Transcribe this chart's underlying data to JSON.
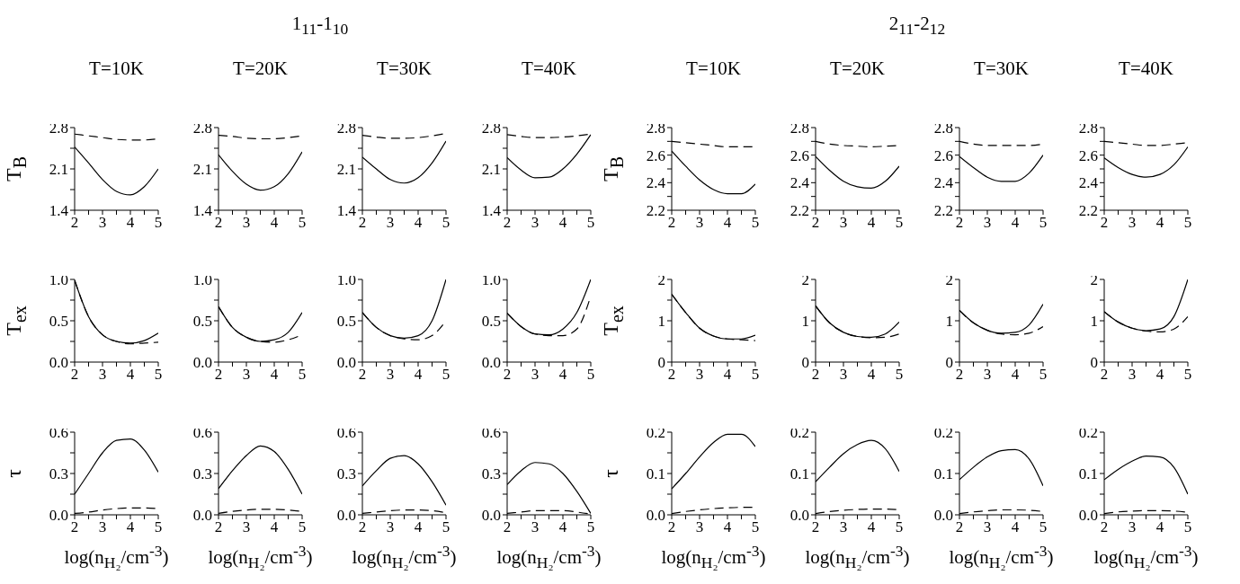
{
  "chart_data": [
    {
      "type": "line",
      "title": "T=10K",
      "ylabel": "T$_{B}$",
      "x": [
        2,
        2.5,
        3,
        3.5,
        4,
        4.5,
        5
      ],
      "xlim": [
        2,
        5
      ],
      "xticks": [
        2,
        {
          "value": 2.5,
          "label": null
        },
        3,
        {
          "value": 3.5,
          "label": null
        },
        4,
        {
          "value": 4.5,
          "label": null
        },
        5
      ],
      "ylim": [
        1.4,
        2.8
      ],
      "yticks": [
        1.4,
        {
          "value": 1.75,
          "label": null
        },
        2.1,
        {
          "value": 2.45,
          "label": null
        },
        2.8
      ],
      "series": [
        {
          "color": "#000000",
          "line_style": "solid",
          "values": [
            2.47,
            2.2,
            1.92,
            1.72,
            1.66,
            1.8,
            2.1
          ]
        },
        {
          "color": "#000000",
          "line_style": "dashed",
          "values": [
            2.69,
            2.66,
            2.63,
            2.6,
            2.59,
            2.59,
            2.61
          ]
        }
      ]
    },
    {
      "type": "line",
      "title": "T=20K",
      "annotations": [
        "1$_{11}$-1$_{10}$"
      ],
      "x": [
        2,
        2.5,
        3,
        3.5,
        4,
        4.5,
        5
      ],
      "xlim": [
        2,
        5
      ],
      "xticks": [
        2,
        {
          "value": 2.5,
          "label": null
        },
        3,
        {
          "value": 3.5,
          "label": null
        },
        4,
        {
          "value": 4.5,
          "label": null
        },
        5
      ],
      "ylim": [
        1.4,
        2.8
      ],
      "yticks": [
        1.4,
        {
          "value": 1.75,
          "label": null
        },
        2.1,
        {
          "value": 2.45,
          "label": null
        },
        2.8
      ],
      "series": [
        {
          "color": "#000000",
          "line_style": "solid",
          "values": [
            2.34,
            2.06,
            1.84,
            1.74,
            1.8,
            2.02,
            2.39
          ]
        },
        {
          "color": "#000000",
          "line_style": "dashed",
          "values": [
            2.67,
            2.65,
            2.62,
            2.61,
            2.61,
            2.63,
            2.66
          ]
        }
      ]
    },
    {
      "type": "line",
      "title": "T=30K",
      "x": [
        2,
        2.5,
        3,
        3.5,
        4,
        4.5,
        5
      ],
      "xlim": [
        2,
        5
      ],
      "xticks": [
        2,
        {
          "value": 2.5,
          "label": null
        },
        3,
        {
          "value": 3.5,
          "label": null
        },
        4,
        {
          "value": 4.5,
          "label": null
        },
        5
      ],
      "ylim": [
        1.4,
        2.8
      ],
      "yticks": [
        1.4,
        {
          "value": 1.75,
          "label": null
        },
        2.1,
        {
          "value": 2.45,
          "label": null
        },
        2.8
      ],
      "series": [
        {
          "color": "#000000",
          "line_style": "solid",
          "values": [
            2.3,
            2.1,
            1.92,
            1.86,
            1.95,
            2.2,
            2.57
          ]
        },
        {
          "color": "#000000",
          "line_style": "dashed",
          "values": [
            2.67,
            2.64,
            2.62,
            2.62,
            2.63,
            2.66,
            2.7
          ]
        }
      ]
    },
    {
      "type": "line",
      "title": "T=40K",
      "x": [
        2,
        2.5,
        3,
        3.5,
        4,
        4.5,
        5
      ],
      "xlim": [
        2,
        5
      ],
      "xticks": [
        2,
        {
          "value": 2.5,
          "label": null
        },
        3,
        {
          "value": 3.5,
          "label": null
        },
        4,
        {
          "value": 4.5,
          "label": null
        },
        5
      ],
      "ylim": [
        1.4,
        2.8
      ],
      "yticks": [
        1.4,
        {
          "value": 1.75,
          "label": null
        },
        2.1,
        {
          "value": 2.45,
          "label": null
        },
        2.8
      ],
      "series": [
        {
          "color": "#000000",
          "line_style": "solid",
          "values": [
            2.29,
            2.08,
            1.95,
            1.96,
            2.1,
            2.35,
            2.68
          ]
        },
        {
          "color": "#000000",
          "line_style": "dashed",
          "values": [
            2.68,
            2.65,
            2.63,
            2.63,
            2.64,
            2.66,
            2.69
          ]
        }
      ]
    },
    {
      "type": "line",
      "title": "T=10K",
      "ylabel": "T$_{B}$",
      "x": [
        2,
        2.5,
        3,
        3.5,
        4,
        4.5,
        5
      ],
      "xlim": [
        2,
        5
      ],
      "xticks": [
        2,
        {
          "value": 2.5,
          "label": null
        },
        3,
        {
          "value": 3.5,
          "label": null
        },
        4,
        {
          "value": 4.5,
          "label": null
        },
        5
      ],
      "ylim": [
        2.2,
        2.8
      ],
      "yticks": [
        2.2,
        {
          "value": 2.3,
          "label": null
        },
        2.4,
        {
          "value": 2.5,
          "label": null
        },
        2.6,
        {
          "value": 2.7,
          "label": null
        },
        2.8
      ],
      "series": [
        {
          "color": "#000000",
          "line_style": "solid",
          "values": [
            2.63,
            2.52,
            2.42,
            2.35,
            2.32,
            2.32,
            2.39
          ]
        },
        {
          "color": "#000000",
          "line_style": "dashed",
          "values": [
            2.7,
            2.69,
            2.68,
            2.67,
            2.66,
            2.66,
            2.66
          ]
        }
      ]
    },
    {
      "type": "line",
      "title": "T=20K",
      "annotations": [
        "2$_{11}$-2$_{12}$"
      ],
      "x": [
        2,
        2.5,
        3,
        3.5,
        4,
        4.5,
        5
      ],
      "xlim": [
        2,
        5
      ],
      "xticks": [
        2,
        {
          "value": 2.5,
          "label": null
        },
        3,
        {
          "value": 3.5,
          "label": null
        },
        4,
        {
          "value": 4.5,
          "label": null
        },
        5
      ],
      "ylim": [
        2.2,
        2.8
      ],
      "yticks": [
        2.2,
        {
          "value": 2.3,
          "label": null
        },
        2.4,
        {
          "value": 2.5,
          "label": null
        },
        2.6,
        {
          "value": 2.7,
          "label": null
        },
        2.8
      ],
      "series": [
        {
          "color": "#000000",
          "line_style": "solid",
          "values": [
            2.59,
            2.49,
            2.41,
            2.37,
            2.36,
            2.41,
            2.52
          ]
        },
        {
          "color": "#000000",
          "line_style": "dashed",
          "values": [
            2.7,
            2.68,
            2.67,
            2.665,
            2.66,
            2.665,
            2.67
          ]
        }
      ]
    },
    {
      "type": "line",
      "title": "T=30K",
      "x": [
        2,
        2.5,
        3,
        3.5,
        4,
        4.5,
        5
      ],
      "xlim": [
        2,
        5
      ],
      "xticks": [
        2,
        {
          "value": 2.5,
          "label": null
        },
        3,
        {
          "value": 3.5,
          "label": null
        },
        4,
        {
          "value": 4.5,
          "label": null
        },
        5
      ],
      "ylim": [
        2.2,
        2.8
      ],
      "yticks": [
        2.2,
        {
          "value": 2.3,
          "label": null
        },
        2.4,
        {
          "value": 2.5,
          "label": null
        },
        2.6,
        {
          "value": 2.7,
          "label": null
        },
        2.8
      ],
      "series": [
        {
          "color": "#000000",
          "line_style": "solid",
          "values": [
            2.59,
            2.51,
            2.44,
            2.41,
            2.41,
            2.47,
            2.6
          ]
        },
        {
          "color": "#000000",
          "line_style": "dashed",
          "values": [
            2.7,
            2.68,
            2.67,
            2.67,
            2.67,
            2.67,
            2.68
          ]
        }
      ]
    },
    {
      "type": "line",
      "title": "T=40K",
      "x": [
        2,
        2.5,
        3,
        3.5,
        4,
        4.5,
        5
      ],
      "xlim": [
        2,
        5
      ],
      "xticks": [
        2,
        {
          "value": 2.5,
          "label": null
        },
        3,
        {
          "value": 3.5,
          "label": null
        },
        4,
        {
          "value": 4.5,
          "label": null
        },
        5
      ],
      "ylim": [
        2.2,
        2.8
      ],
      "yticks": [
        2.2,
        {
          "value": 2.3,
          "label": null
        },
        2.4,
        {
          "value": 2.5,
          "label": null
        },
        2.6,
        {
          "value": 2.7,
          "label": null
        },
        2.8
      ],
      "series": [
        {
          "color": "#000000",
          "line_style": "solid",
          "values": [
            2.58,
            2.51,
            2.46,
            2.44,
            2.46,
            2.53,
            2.66
          ]
        },
        {
          "color": "#000000",
          "line_style": "dashed",
          "values": [
            2.7,
            2.69,
            2.68,
            2.67,
            2.67,
            2.68,
            2.69
          ]
        }
      ]
    },
    {
      "type": "line",
      "ylabel": "T$_{ex}$",
      "x": [
        2,
        2.5,
        3,
        3.5,
        4,
        4.5,
        5
      ],
      "xlim": [
        2,
        5
      ],
      "xticks": [
        2,
        {
          "value": 2.5,
          "label": null
        },
        3,
        {
          "value": 3.5,
          "label": null
        },
        4,
        {
          "value": 4.5,
          "label": null
        },
        5
      ],
      "ylim": [
        0,
        1
      ],
      "yticks": [
        {
          "value": 0,
          "label": "0.0"
        },
        {
          "value": 0.25,
          "label": null
        },
        0.5,
        {
          "value": 0.75,
          "label": null
        },
        {
          "value": 1,
          "label": "1.0"
        }
      ],
      "series": [
        {
          "color": "#000000",
          "line_style": "solid",
          "values": [
            0.99,
            0.55,
            0.33,
            0.25,
            0.23,
            0.26,
            0.35
          ]
        },
        {
          "color": "#000000",
          "line_style": "dashed",
          "values": [
            0.99,
            0.55,
            0.33,
            0.25,
            0.22,
            0.23,
            0.24
          ]
        }
      ]
    },
    {
      "type": "line",
      "x": [
        2,
        2.5,
        3,
        3.5,
        4,
        4.5,
        5
      ],
      "xlim": [
        2,
        5
      ],
      "xticks": [
        2,
        {
          "value": 2.5,
          "label": null
        },
        3,
        {
          "value": 3.5,
          "label": null
        },
        4,
        {
          "value": 4.5,
          "label": null
        },
        5
      ],
      "ylim": [
        0,
        1
      ],
      "yticks": [
        {
          "value": 0,
          "label": "0.0"
        },
        {
          "value": 0.25,
          "label": null
        },
        0.5,
        {
          "value": 0.75,
          "label": null
        },
        {
          "value": 1,
          "label": "1.0"
        }
      ],
      "series": [
        {
          "color": "#000000",
          "line_style": "solid",
          "values": [
            0.67,
            0.42,
            0.3,
            0.25,
            0.27,
            0.36,
            0.6
          ]
        },
        {
          "color": "#000000",
          "line_style": "dashed",
          "values": [
            0.67,
            0.42,
            0.3,
            0.25,
            0.24,
            0.27,
            0.33
          ]
        }
      ]
    },
    {
      "type": "line",
      "x": [
        2,
        2.5,
        3,
        3.5,
        4,
        4.5,
        5
      ],
      "xlim": [
        2,
        5
      ],
      "xticks": [
        2,
        {
          "value": 2.5,
          "label": null
        },
        3,
        {
          "value": 3.5,
          "label": null
        },
        4,
        {
          "value": 4.5,
          "label": null
        },
        5
      ],
      "ylim": [
        0,
        1
      ],
      "yticks": [
        {
          "value": 0,
          "label": "0.0"
        },
        {
          "value": 0.25,
          "label": null
        },
        0.5,
        {
          "value": 0.75,
          "label": null
        },
        {
          "value": 1,
          "label": "1.0"
        }
      ],
      "series": [
        {
          "color": "#000000",
          "line_style": "solid",
          "values": [
            0.6,
            0.42,
            0.32,
            0.29,
            0.32,
            0.5,
            1.0
          ]
        },
        {
          "color": "#000000",
          "line_style": "dashed",
          "values": [
            0.6,
            0.42,
            0.32,
            0.28,
            0.27,
            0.32,
            0.5
          ]
        }
      ]
    },
    {
      "type": "line",
      "x": [
        2,
        2.5,
        3,
        3.5,
        4,
        4.5,
        5
      ],
      "xlim": [
        2,
        5
      ],
      "xticks": [
        2,
        {
          "value": 2.5,
          "label": null
        },
        3,
        {
          "value": 3.5,
          "label": null
        },
        4,
        {
          "value": 4.5,
          "label": null
        },
        5
      ],
      "ylim": [
        0,
        1
      ],
      "yticks": [
        {
          "value": 0,
          "label": "0.0"
        },
        {
          "value": 0.25,
          "label": null
        },
        0.5,
        {
          "value": 0.75,
          "label": null
        },
        {
          "value": 1,
          "label": "1.0"
        }
      ],
      "series": [
        {
          "color": "#000000",
          "line_style": "solid",
          "values": [
            0.59,
            0.43,
            0.34,
            0.33,
            0.4,
            0.6,
            1.0
          ]
        },
        {
          "color": "#000000",
          "line_style": "dashed",
          "values": [
            0.59,
            0.43,
            0.34,
            0.32,
            0.32,
            0.4,
            0.8
          ]
        }
      ]
    },
    {
      "type": "line",
      "ylabel": "T$_{ex}$",
      "x": [
        2,
        2.5,
        3,
        3.5,
        4,
        4.5,
        5
      ],
      "xlim": [
        2,
        5
      ],
      "xticks": [
        2,
        {
          "value": 2.5,
          "label": null
        },
        3,
        {
          "value": 3.5,
          "label": null
        },
        4,
        {
          "value": 4.5,
          "label": null
        },
        5
      ],
      "ylim": [
        0,
        2
      ],
      "yticks": [
        0,
        {
          "value": 0.5,
          "label": null
        },
        1,
        {
          "value": 1.5,
          "label": null
        },
        2
      ],
      "series": [
        {
          "color": "#000000",
          "line_style": "solid",
          "values": [
            1.64,
            1.2,
            0.82,
            0.63,
            0.56,
            0.56,
            0.65
          ]
        },
        {
          "color": "#000000",
          "line_style": "dashed",
          "values": [
            1.64,
            1.2,
            0.82,
            0.63,
            0.56,
            0.54,
            0.52
          ]
        }
      ]
    },
    {
      "type": "line",
      "x": [
        2,
        2.5,
        3,
        3.5,
        4,
        4.5,
        5
      ],
      "xlim": [
        2,
        5
      ],
      "xticks": [
        2,
        {
          "value": 2.5,
          "label": null
        },
        3,
        {
          "value": 3.5,
          "label": null
        },
        4,
        {
          "value": 4.5,
          "label": null
        },
        5
      ],
      "ylim": [
        0,
        2
      ],
      "yticks": [
        0,
        {
          "value": 0.5,
          "label": null
        },
        1,
        {
          "value": 1.5,
          "label": null
        },
        2
      ],
      "series": [
        {
          "color": "#000000",
          "line_style": "solid",
          "values": [
            1.36,
            0.95,
            0.72,
            0.62,
            0.6,
            0.68,
            0.97
          ]
        },
        {
          "color": "#000000",
          "line_style": "dashed",
          "values": [
            1.36,
            0.95,
            0.72,
            0.62,
            0.59,
            0.6,
            0.68
          ]
        }
      ]
    },
    {
      "type": "line",
      "x": [
        2,
        2.5,
        3,
        3.5,
        4,
        4.5,
        5
      ],
      "xlim": [
        2,
        5
      ],
      "xticks": [
        2,
        {
          "value": 2.5,
          "label": null
        },
        3,
        {
          "value": 3.5,
          "label": null
        },
        4,
        {
          "value": 4.5,
          "label": null
        },
        5
      ],
      "ylim": [
        0,
        2
      ],
      "yticks": [
        0,
        {
          "value": 0.5,
          "label": null
        },
        1,
        {
          "value": 1.5,
          "label": null
        },
        2
      ],
      "series": [
        {
          "color": "#000000",
          "line_style": "solid",
          "values": [
            1.25,
            0.95,
            0.77,
            0.7,
            0.72,
            0.9,
            1.4
          ]
        },
        {
          "color": "#000000",
          "line_style": "dashed",
          "values": [
            1.25,
            0.95,
            0.77,
            0.68,
            0.66,
            0.7,
            0.86
          ]
        }
      ]
    },
    {
      "type": "line",
      "x": [
        2,
        2.5,
        3,
        3.5,
        4,
        4.5,
        5
      ],
      "xlim": [
        2,
        5
      ],
      "xticks": [
        2,
        {
          "value": 2.5,
          "label": null
        },
        3,
        {
          "value": 3.5,
          "label": null
        },
        4,
        {
          "value": 4.5,
          "label": null
        },
        5
      ],
      "ylim": [
        0,
        2
      ],
      "yticks": [
        0,
        {
          "value": 0.5,
          "label": null
        },
        1,
        {
          "value": 1.5,
          "label": null
        },
        2
      ],
      "series": [
        {
          "color": "#000000",
          "line_style": "solid",
          "values": [
            1.22,
            0.97,
            0.82,
            0.76,
            0.8,
            1.1,
            2.0
          ]
        },
        {
          "color": "#000000",
          "line_style": "dashed",
          "values": [
            1.22,
            0.97,
            0.82,
            0.75,
            0.73,
            0.8,
            1.1
          ]
        }
      ]
    },
    {
      "type": "line",
      "ylabel": "τ",
      "xlabel": "log(n$_{H₂}$/cm$^{-3}$)",
      "x": [
        2,
        2.5,
        3,
        3.5,
        4,
        4.5,
        5
      ],
      "xlim": [
        2,
        5
      ],
      "xticks": [
        2,
        {
          "value": 2.5,
          "label": null
        },
        3,
        {
          "value": 3.5,
          "label": null
        },
        4,
        {
          "value": 4.5,
          "label": null
        },
        5
      ],
      "ylim": [
        0,
        0.6
      ],
      "yticks": [
        {
          "value": 0,
          "label": "0.0"
        },
        {
          "value": 0.15,
          "label": null
        },
        0.3,
        {
          "value": 0.45,
          "label": null
        },
        0.6
      ],
      "series": [
        {
          "color": "#000000",
          "line_style": "solid",
          "values": [
            0.15,
            0.3,
            0.45,
            0.54,
            0.55,
            0.47,
            0.31
          ]
        },
        {
          "color": "#000000",
          "line_style": "dashed",
          "values": [
            0.01,
            0.02,
            0.035,
            0.045,
            0.05,
            0.05,
            0.045
          ]
        }
      ]
    },
    {
      "type": "line",
      "xlabel": "log(n$_{H₂}$/cm$^{-3}$)",
      "x": [
        2,
        2.5,
        3,
        3.5,
        4,
        4.5,
        5
      ],
      "xlim": [
        2,
        5
      ],
      "xticks": [
        2,
        {
          "value": 2.5,
          "label": null
        },
        3,
        {
          "value": 3.5,
          "label": null
        },
        4,
        {
          "value": 4.5,
          "label": null
        },
        5
      ],
      "ylim": [
        0,
        0.6
      ],
      "yticks": [
        {
          "value": 0,
          "label": "0.0"
        },
        {
          "value": 0.15,
          "label": null
        },
        0.3,
        {
          "value": 0.45,
          "label": null
        },
        0.6
      ],
      "series": [
        {
          "color": "#000000",
          "line_style": "solid",
          "values": [
            0.19,
            0.32,
            0.43,
            0.5,
            0.46,
            0.33,
            0.15
          ]
        },
        {
          "color": "#000000",
          "line_style": "dashed",
          "values": [
            0.01,
            0.025,
            0.035,
            0.04,
            0.04,
            0.035,
            0.025
          ]
        }
      ]
    },
    {
      "type": "line",
      "xlabel": "log(n$_{H₂}$/cm$^{-3}$)",
      "x": [
        2,
        2.5,
        3,
        3.5,
        4,
        4.5,
        5
      ],
      "xlim": [
        2,
        5
      ],
      "xticks": [
        2,
        {
          "value": 2.5,
          "label": null
        },
        3,
        {
          "value": 3.5,
          "label": null
        },
        4,
        {
          "value": 4.5,
          "label": null
        },
        5
      ],
      "ylim": [
        0,
        0.6
      ],
      "yticks": [
        {
          "value": 0,
          "label": "0.0"
        },
        {
          "value": 0.15,
          "label": null
        },
        0.3,
        {
          "value": 0.45,
          "label": null
        },
        0.6
      ],
      "series": [
        {
          "color": "#000000",
          "line_style": "solid",
          "values": [
            0.21,
            0.32,
            0.41,
            0.43,
            0.37,
            0.24,
            0.07
          ]
        },
        {
          "color": "#000000",
          "line_style": "dashed",
          "values": [
            0.01,
            0.02,
            0.03,
            0.035,
            0.035,
            0.03,
            0.015
          ]
        }
      ]
    },
    {
      "type": "line",
      "xlabel": "log(n$_{H₂}$/cm$^{-3}$)",
      "x": [
        2,
        2.5,
        3,
        3.5,
        4,
        4.5,
        5
      ],
      "xlim": [
        2,
        5
      ],
      "xticks": [
        2,
        {
          "value": 2.5,
          "label": null
        },
        3,
        {
          "value": 3.5,
          "label": null
        },
        4,
        {
          "value": 4.5,
          "label": null
        },
        5
      ],
      "ylim": [
        0,
        0.6
      ],
      "yticks": [
        {
          "value": 0,
          "label": "0.0"
        },
        {
          "value": 0.15,
          "label": null
        },
        0.3,
        {
          "value": 0.45,
          "label": null
        },
        0.6
      ],
      "series": [
        {
          "color": "#000000",
          "line_style": "solid",
          "values": [
            0.22,
            0.32,
            0.38,
            0.37,
            0.3,
            0.17,
            0.01
          ]
        },
        {
          "color": "#000000",
          "line_style": "dashed",
          "values": [
            0.01,
            0.02,
            0.03,
            0.03,
            0.03,
            0.02,
            0.005
          ]
        }
      ]
    },
    {
      "type": "line",
      "ylabel": "τ",
      "xlabel": "log(n$_{H₂}$/cm$^{-3}$)",
      "x": [
        2,
        2.5,
        3,
        3.5,
        4,
        4.5,
        5
      ],
      "xlim": [
        2,
        5
      ],
      "xticks": [
        2,
        {
          "value": 2.5,
          "label": null
        },
        3,
        {
          "value": 3.5,
          "label": null
        },
        4,
        {
          "value": 4.5,
          "label": null
        },
        5
      ],
      "ylim": [
        0,
        0.2
      ],
      "yticks": [
        {
          "value": 0,
          "label": "0.0"
        },
        {
          "value": 0.05,
          "label": null
        },
        0.1,
        {
          "value": 0.15,
          "label": null
        },
        0.2
      ],
      "series": [
        {
          "color": "#000000",
          "line_style": "solid",
          "values": [
            0.063,
            0.1,
            0.14,
            0.175,
            0.195,
            0.195,
            0.165
          ]
        },
        {
          "color": "#000000",
          "line_style": "dashed",
          "values": [
            0.003,
            0.008,
            0.012,
            0.015,
            0.017,
            0.018,
            0.018
          ]
        }
      ]
    },
    {
      "type": "line",
      "xlabel": "log(n$_{H₂}$/cm$^{-3}$)",
      "x": [
        2,
        2.5,
        3,
        3.5,
        4,
        4.5,
        5
      ],
      "xlim": [
        2,
        5
      ],
      "xticks": [
        2,
        {
          "value": 2.5,
          "label": null
        },
        3,
        {
          "value": 3.5,
          "label": null
        },
        4,
        {
          "value": 4.5,
          "label": null
        },
        5
      ],
      "ylim": [
        0,
        0.2
      ],
      "yticks": [
        {
          "value": 0,
          "label": "0.0"
        },
        {
          "value": 0.05,
          "label": null
        },
        0.1,
        {
          "value": 0.15,
          "label": null
        },
        0.2
      ],
      "series": [
        {
          "color": "#000000",
          "line_style": "solid",
          "values": [
            0.08,
            0.115,
            0.148,
            0.17,
            0.18,
            0.16,
            0.105
          ]
        },
        {
          "color": "#000000",
          "line_style": "dashed",
          "values": [
            0.003,
            0.008,
            0.011,
            0.013,
            0.014,
            0.014,
            0.012
          ]
        }
      ]
    },
    {
      "type": "line",
      "xlabel": "log(n$_{H₂}$/cm$^{-3}$)",
      "x": [
        2,
        2.5,
        3,
        3.5,
        4,
        4.5,
        5
      ],
      "xlim": [
        2,
        5
      ],
      "xticks": [
        2,
        {
          "value": 2.5,
          "label": null
        },
        3,
        {
          "value": 3.5,
          "label": null
        },
        4,
        {
          "value": 4.5,
          "label": null
        },
        5
      ],
      "ylim": [
        0,
        0.2
      ],
      "yticks": [
        {
          "value": 0,
          "label": "0.0"
        },
        {
          "value": 0.05,
          "label": null
        },
        0.1,
        {
          "value": 0.15,
          "label": null
        },
        0.2
      ],
      "series": [
        {
          "color": "#000000",
          "line_style": "solid",
          "values": [
            0.085,
            0.115,
            0.14,
            0.155,
            0.158,
            0.135,
            0.07
          ]
        },
        {
          "color": "#000000",
          "line_style": "dashed",
          "values": [
            0.003,
            0.007,
            0.01,
            0.012,
            0.012,
            0.011,
            0.008
          ]
        }
      ]
    },
    {
      "type": "line",
      "xlabel": "log(n$_{H₂}$/cm$^{-3}$)",
      "x": [
        2,
        2.5,
        3,
        3.5,
        4,
        4.5,
        5
      ],
      "xlim": [
        2,
        5
      ],
      "xticks": [
        2,
        {
          "value": 2.5,
          "label": null
        },
        3,
        {
          "value": 3.5,
          "label": null
        },
        4,
        {
          "value": 4.5,
          "label": null
        },
        5
      ],
      "ylim": [
        0,
        0.2
      ],
      "yticks": [
        {
          "value": 0,
          "label": "0.0"
        },
        {
          "value": 0.05,
          "label": null
        },
        0.1,
        {
          "value": 0.15,
          "label": null
        },
        0.2
      ],
      "series": [
        {
          "color": "#000000",
          "line_style": "solid",
          "values": [
            0.085,
            0.11,
            0.13,
            0.142,
            0.14,
            0.115,
            0.05
          ]
        },
        {
          "color": "#000000",
          "line_style": "dashed",
          "values": [
            0.003,
            0.007,
            0.009,
            0.01,
            0.01,
            0.009,
            0.006
          ]
        }
      ]
    }
  ]
}
